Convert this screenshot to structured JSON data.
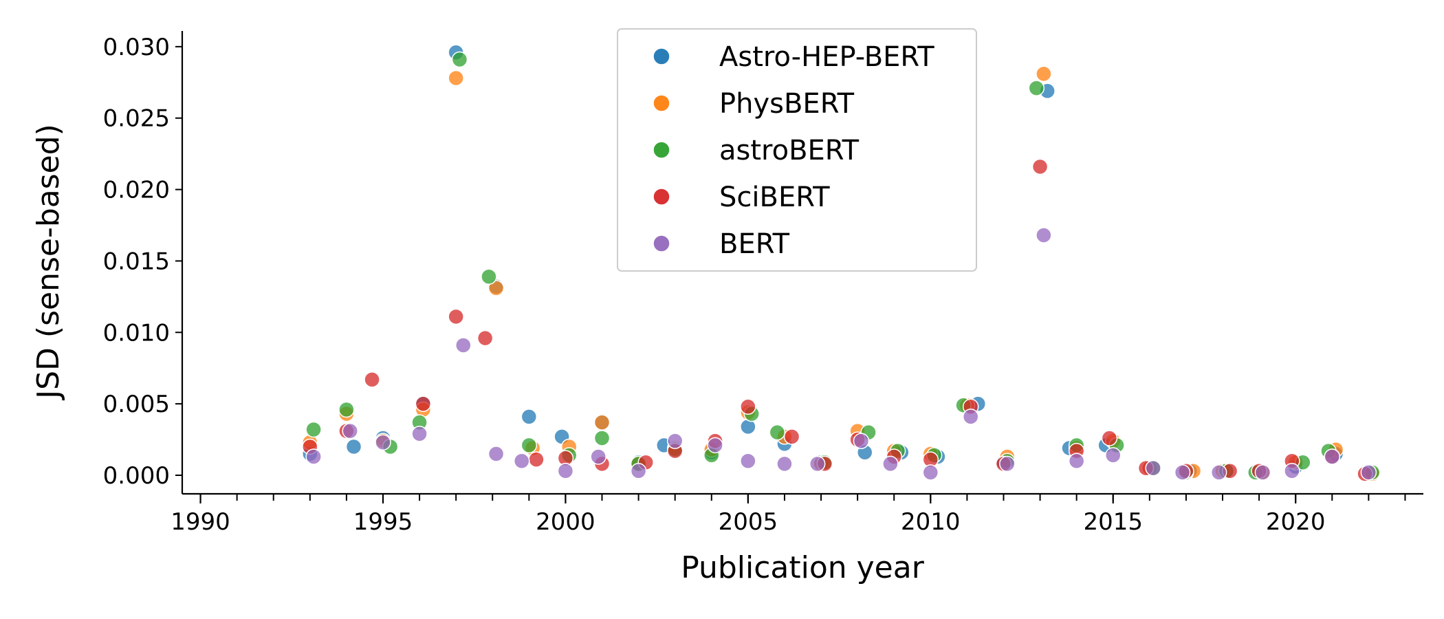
{
  "chart_data": {
    "type": "scatter",
    "title": "",
    "xlabel": "Publication year",
    "ylabel": "JSD (sense-based)",
    "xlim": [
      1989.5,
      2023.5
    ],
    "ylim": [
      -0.0013,
      0.0311
    ],
    "x_ticks_major": [
      1990,
      1995,
      2000,
      2005,
      2010,
      2015,
      2020
    ],
    "x_ticks_minor_step": 1,
    "y_ticks": [
      0.0,
      0.005,
      0.01,
      0.015,
      0.02,
      0.025,
      0.03
    ],
    "y_tick_labels": [
      "0.000",
      "0.005",
      "0.010",
      "0.015",
      "0.020",
      "0.025",
      "0.030"
    ],
    "grid": false,
    "legend_position": "top-center",
    "colors": {
      "Astro-HEP-BERT": "#1f77b4",
      "PhysBERT": "#ff7f0e",
      "astroBERT": "#2ca02c",
      "SciBERT": "#d62728",
      "BERT": "#9467bd"
    },
    "series": [
      {
        "name": "Astro-HEP-BERT",
        "points": [
          [
            1993.0,
            0.0015
          ],
          [
            1994.2,
            0.002
          ],
          [
            1995.0,
            0.0026
          ],
          [
            1996.1,
            0.005
          ],
          [
            1997.0,
            0.0296
          ],
          [
            1998.1,
            0.0132
          ],
          [
            1999.0,
            0.0041
          ],
          [
            1999.9,
            0.0027
          ],
          [
            2001.0,
            0.0037
          ],
          [
            2002.0,
            0.0009
          ],
          [
            2002.7,
            0.0021
          ],
          [
            2004.0,
            0.0016
          ],
          [
            2005.0,
            0.0034
          ],
          [
            2006.0,
            0.0022
          ],
          [
            2007.0,
            0.0009
          ],
          [
            2008.2,
            0.0016
          ],
          [
            2009.2,
            0.0016
          ],
          [
            2010.2,
            0.0013
          ],
          [
            2011.3,
            0.005
          ],
          [
            2012.0,
            0.0009
          ],
          [
            2013.2,
            0.0269
          ],
          [
            2013.8,
            0.0019
          ],
          [
            2014.8,
            0.0021
          ],
          [
            2016.0,
            0.0005
          ],
          [
            2017.1,
            0.0003
          ],
          [
            2018.1,
            0.0003
          ],
          [
            2019.0,
            0.0002
          ],
          [
            2020.0,
            0.0006
          ],
          [
            2021.1,
            0.0015
          ],
          [
            2022.0,
            0.0002
          ]
        ]
      },
      {
        "name": "PhysBERT",
        "points": [
          [
            1993.0,
            0.0023
          ],
          [
            1994.0,
            0.0043
          ],
          [
            1995.0,
            0.0024
          ],
          [
            1996.1,
            0.0046
          ],
          [
            1997.0,
            0.0278
          ],
          [
            1998.1,
            0.0131
          ],
          [
            1999.1,
            0.0019
          ],
          [
            2000.1,
            0.002
          ],
          [
            2001.0,
            0.0037
          ],
          [
            2002.0,
            0.0008
          ],
          [
            2003.0,
            0.0019
          ],
          [
            2004.0,
            0.0018
          ],
          [
            2005.0,
            0.0044
          ],
          [
            2006.0,
            0.0027
          ],
          [
            2007.0,
            0.0008
          ],
          [
            2008.0,
            0.0031
          ],
          [
            2009.0,
            0.0017
          ],
          [
            2010.0,
            0.0015
          ],
          [
            2011.0,
            0.0049
          ],
          [
            2012.1,
            0.0013
          ],
          [
            2013.1,
            0.0281
          ],
          [
            2014.0,
            0.0019
          ],
          [
            2015.0,
            0.0024
          ],
          [
            2016.0,
            0.0005
          ],
          [
            2017.2,
            0.0003
          ],
          [
            2018.0,
            0.0003
          ],
          [
            2019.1,
            0.0002
          ],
          [
            2020.0,
            0.0009
          ],
          [
            2021.1,
            0.0018
          ],
          [
            2022.1,
            0.0001
          ]
        ]
      },
      {
        "name": "astroBERT",
        "points": [
          [
            1993.1,
            0.0032
          ],
          [
            1994.0,
            0.0046
          ],
          [
            1995.2,
            0.002
          ],
          [
            1996.0,
            0.0037
          ],
          [
            1997.1,
            0.0291
          ],
          [
            1997.9,
            0.0139
          ],
          [
            1999.0,
            0.0021
          ],
          [
            2000.1,
            0.0014
          ],
          [
            2001.0,
            0.0026
          ],
          [
            2002.0,
            0.0008
          ],
          [
            2003.0,
            0.0018
          ],
          [
            2004.0,
            0.0014
          ],
          [
            2005.1,
            0.0043
          ],
          [
            2005.8,
            0.003
          ],
          [
            2007.1,
            0.0009
          ],
          [
            2008.3,
            0.003
          ],
          [
            2009.1,
            0.0017
          ],
          [
            2010.1,
            0.0014
          ],
          [
            2010.9,
            0.0049
          ],
          [
            2012.1,
            0.001
          ],
          [
            2012.9,
            0.0271
          ],
          [
            2014.0,
            0.0021
          ],
          [
            2015.1,
            0.0021
          ],
          [
            2016.1,
            0.0005
          ],
          [
            2017.0,
            0.0002
          ],
          [
            2018.1,
            0.0003
          ],
          [
            2018.9,
            0.0002
          ],
          [
            2020.2,
            0.0009
          ],
          [
            2020.9,
            0.0017
          ],
          [
            2022.1,
            0.0002
          ]
        ]
      },
      {
        "name": "SciBERT",
        "points": [
          [
            1993.0,
            0.002
          ],
          [
            1994.0,
            0.0031
          ],
          [
            1994.7,
            0.0067
          ],
          [
            1996.1,
            0.005
          ],
          [
            1997.0,
            0.0111
          ],
          [
            1997.8,
            0.0096
          ],
          [
            1999.2,
            0.0011
          ],
          [
            2000.0,
            0.0012
          ],
          [
            2001.0,
            0.0008
          ],
          [
            2002.2,
            0.0009
          ],
          [
            2003.0,
            0.0017
          ],
          [
            2004.1,
            0.0024
          ],
          [
            2005.0,
            0.0048
          ],
          [
            2006.2,
            0.0027
          ],
          [
            2007.1,
            0.0008
          ],
          [
            2008.0,
            0.0025
          ],
          [
            2009.0,
            0.0013
          ],
          [
            2010.0,
            0.0011
          ],
          [
            2011.1,
            0.0048
          ],
          [
            2012.0,
            0.0008
          ],
          [
            2013.0,
            0.0216
          ],
          [
            2014.0,
            0.0017
          ],
          [
            2014.9,
            0.0026
          ],
          [
            2015.9,
            0.0005
          ],
          [
            2017.0,
            0.0003
          ],
          [
            2018.2,
            0.0003
          ],
          [
            2019.0,
            0.0003
          ],
          [
            2019.9,
            0.001
          ],
          [
            2021.0,
            0.0013
          ],
          [
            2021.9,
            0.0001
          ]
        ]
      },
      {
        "name": "BERT",
        "points": [
          [
            1993.1,
            0.0013
          ],
          [
            1994.1,
            0.0031
          ],
          [
            1995.0,
            0.0023
          ],
          [
            1996.0,
            0.0029
          ],
          [
            1997.2,
            0.0091
          ],
          [
            1998.1,
            0.0015
          ],
          [
            1998.8,
            0.001
          ],
          [
            2000.0,
            0.0003
          ],
          [
            2000.9,
            0.0013
          ],
          [
            2002.0,
            0.0003
          ],
          [
            2003.0,
            0.0024
          ],
          [
            2004.1,
            0.0021
          ],
          [
            2005.0,
            0.001
          ],
          [
            2006.0,
            0.0008
          ],
          [
            2006.9,
            0.0008
          ],
          [
            2008.1,
            0.0024
          ],
          [
            2008.9,
            0.0008
          ],
          [
            2010.0,
            0.0002
          ],
          [
            2011.1,
            0.0041
          ],
          [
            2012.1,
            0.0008
          ],
          [
            2013.1,
            0.0168
          ],
          [
            2014.0,
            0.001
          ],
          [
            2015.0,
            0.0014
          ],
          [
            2016.1,
            0.0005
          ],
          [
            2016.9,
            0.0002
          ],
          [
            2017.9,
            0.0002
          ],
          [
            2019.1,
            0.0002
          ],
          [
            2019.9,
            0.0003
          ],
          [
            2021.0,
            0.0013
          ],
          [
            2022.0,
            0.0002
          ]
        ]
      }
    ]
  }
}
